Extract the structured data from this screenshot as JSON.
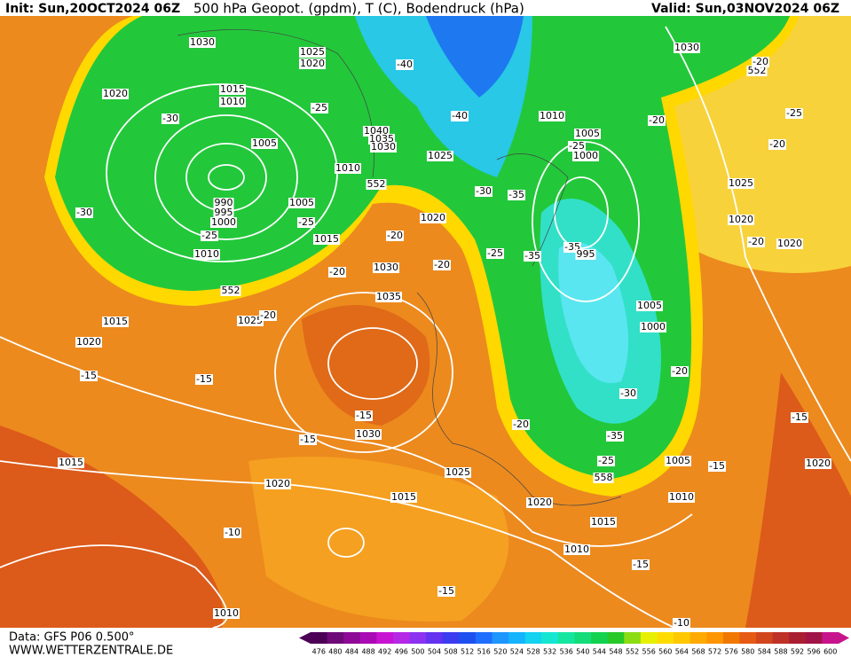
{
  "header": {
    "init": "Init: Sun,20OCT2024 06Z",
    "title": "500 hPa Geopot. (gpdm), T (C), Bodendruck (hPa)",
    "valid": "Valid: Sun,03NOV2024 06Z"
  },
  "map_labels": [
    "1030",
    "1025",
    "1020",
    "1020",
    "1015",
    "1010",
    "-30",
    "1005",
    "990",
    "995",
    "1000",
    "-30",
    "-25",
    "1010",
    "1015",
    "1005",
    "-25",
    "1010",
    "552",
    "1040",
    "1035",
    "1030",
    "-40",
    "-40",
    "-25",
    "1025",
    "1020",
    "-20",
    "-30",
    "-35",
    "1030",
    "-20",
    "-20",
    "552",
    "1015",
    "1020",
    "1025",
    "-20",
    "1035",
    "-15",
    "-15",
    "-15",
    "-15",
    "1030",
    "1015",
    "1020",
    "1015",
    "1025",
    "1020",
    "1015",
    "1010",
    "-10",
    "-15",
    "1010",
    "-15",
    "-10",
    "1010",
    "1005",
    "-15",
    "1020",
    "-15",
    "-20",
    "1020",
    "1020",
    "1025",
    "-20",
    "-25",
    "-20",
    "1030",
    "552",
    "-20",
    "1010",
    "1005",
    "1000",
    "-25",
    "-35",
    "995",
    "-25",
    "-35",
    "1005",
    "1000",
    "-20",
    "-30",
    "-35",
    "-25",
    "558",
    "-20"
  ],
  "footer": {
    "data": "Data: GFS P06 0.500°",
    "site": "WWW.WETTERZENTRALE.DE"
  },
  "colorbar": {
    "ticks": [
      476,
      480,
      484,
      488,
      492,
      496,
      500,
      504,
      508,
      512,
      516,
      520,
      524,
      528,
      532,
      536,
      540,
      544,
      548,
      552,
      556,
      560,
      564,
      568,
      572,
      576,
      580,
      584,
      588,
      592,
      596,
      600
    ],
    "colors": [
      "#4b0055",
      "#6e0a78",
      "#8c0a96",
      "#aa0ab4",
      "#c814d2",
      "#b428e6",
      "#8c32f0",
      "#6432f0",
      "#3c3cf0",
      "#1e50f0",
      "#1e6eff",
      "#1e96ff",
      "#14b4ff",
      "#14d2f0",
      "#14e6d2",
      "#14e6a0",
      "#14dc78",
      "#14d250",
      "#28c828",
      "#8cdc14",
      "#e6f000",
      "#ffdc00",
      "#ffc800",
      "#ffaa00",
      "#ff9600",
      "#f07800",
      "#e65a14",
      "#d2461e",
      "#be3228",
      "#aa1e32",
      "#a01446",
      "#c8148c"
    ]
  }
}
